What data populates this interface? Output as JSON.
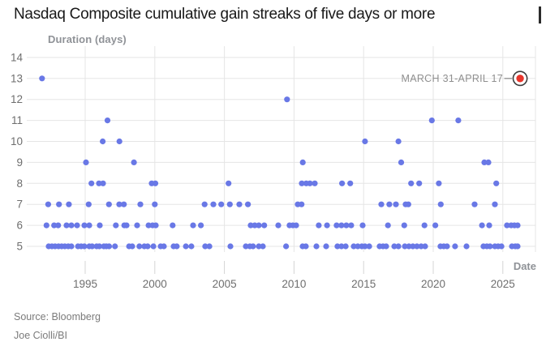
{
  "header": {
    "title": "Nasdaq Composite cumulative gain streaks of five days or more"
  },
  "footer": {
    "source": "Source: Bloomberg",
    "byline": "Joe Ciolli/BI"
  },
  "chart_data": {
    "type": "scatter",
    "title": "Nasdaq Composite cumulative gain streaks of five days or more",
    "x_axis": {
      "label": "Date",
      "ticks": [
        1995,
        2000,
        2005,
        2010,
        2015,
        2020,
        2025
      ],
      "range_years": [
        1991.3,
        2027.3
      ],
      "grid": true
    },
    "y_axis": {
      "label": "Duration (days)",
      "ticks": [
        5,
        6,
        7,
        8,
        9,
        10,
        11,
        12,
        13,
        14
      ],
      "range": [
        5,
        14
      ],
      "grid": true
    },
    "legend": "none",
    "annotation": {
      "label": "MARCH 31-APRIL 17",
      "point": {
        "year": 2026.24,
        "duration": 13
      }
    },
    "colors": {
      "dot": "#6978e6",
      "highlight": "#e8352b",
      "ring_stroke": "#3d3d3d",
      "grid": "#e5e5e5",
      "tick": "#d4d4d4",
      "axis_text": "#6e6e6e",
      "annotation_line": "#8f8f8f"
    },
    "points": [
      [
        1991.9,
        13
      ],
      [
        2009.5,
        12
      ],
      [
        1996.6,
        11
      ],
      [
        2019.9,
        11
      ],
      [
        2021.8,
        11
      ],
      [
        1996.26,
        10
      ],
      [
        1997.46,
        10
      ],
      [
        2015.1,
        10
      ],
      [
        2017.5,
        10
      ],
      [
        1995.06,
        9
      ],
      [
        1998.5,
        9
      ],
      [
        2010.63,
        9
      ],
      [
        2017.7,
        9
      ],
      [
        2023.67,
        9
      ],
      [
        2023.96,
        9
      ],
      [
        1995.45,
        8
      ],
      [
        1995.99,
        8
      ],
      [
        1996.28,
        8
      ],
      [
        1999.78,
        8
      ],
      [
        2000.04,
        8
      ],
      [
        2005.3,
        8
      ],
      [
        2010.56,
        8
      ],
      [
        2010.88,
        8
      ],
      [
        2011.14,
        8
      ],
      [
        2011.49,
        8
      ],
      [
        2013.45,
        8
      ],
      [
        2014.04,
        8
      ],
      [
        2018.41,
        8
      ],
      [
        2018.99,
        8
      ],
      [
        2020.4,
        8
      ],
      [
        2024.53,
        8
      ],
      [
        1992.34,
        7
      ],
      [
        1993.12,
        7
      ],
      [
        1993.83,
        7
      ],
      [
        1995.25,
        7
      ],
      [
        1996.71,
        7
      ],
      [
        1997.45,
        7
      ],
      [
        1997.78,
        7
      ],
      [
        1998.96,
        7
      ],
      [
        2000.0,
        7
      ],
      [
        2003.58,
        7
      ],
      [
        2004.21,
        7
      ],
      [
        2004.77,
        7
      ],
      [
        2005.39,
        7
      ],
      [
        2006.07,
        7
      ],
      [
        2006.69,
        7
      ],
      [
        2010.27,
        7
      ],
      [
        2010.54,
        7
      ],
      [
        2016.27,
        7
      ],
      [
        2016.85,
        7
      ],
      [
        2017.32,
        7
      ],
      [
        2018.02,
        7
      ],
      [
        2018.21,
        7
      ],
      [
        2020.54,
        7
      ],
      [
        2022.97,
        7
      ],
      [
        2024.43,
        7
      ],
      [
        1992.22,
        6
      ],
      [
        1992.77,
        6
      ],
      [
        1993.06,
        6
      ],
      [
        1993.66,
        6
      ],
      [
        1994.01,
        6
      ],
      [
        1994.42,
        6
      ],
      [
        1994.94,
        6
      ],
      [
        1995.29,
        6
      ],
      [
        1996.05,
        6
      ],
      [
        1997.2,
        6
      ],
      [
        1997.81,
        6
      ],
      [
        1997.97,
        6
      ],
      [
        1998.73,
        6
      ],
      [
        1999.55,
        6
      ],
      [
        1999.84,
        6
      ],
      [
        2000.07,
        6
      ],
      [
        2001.28,
        6
      ],
      [
        2002.75,
        6
      ],
      [
        2003.31,
        6
      ],
      [
        2006.89,
        6
      ],
      [
        2007.18,
        6
      ],
      [
        2007.47,
        6
      ],
      [
        2007.86,
        6
      ],
      [
        2008.87,
        6
      ],
      [
        2009.68,
        6
      ],
      [
        2009.92,
        6
      ],
      [
        2010.15,
        6
      ],
      [
        2011.78,
        6
      ],
      [
        2012.37,
        6
      ],
      [
        2013.06,
        6
      ],
      [
        2013.41,
        6
      ],
      [
        2013.76,
        6
      ],
      [
        2014.11,
        6
      ],
      [
        2014.93,
        6
      ],
      [
        2016.75,
        6
      ],
      [
        2017.92,
        6
      ],
      [
        2019.37,
        6
      ],
      [
        2020.15,
        6
      ],
      [
        2023.5,
        6
      ],
      [
        2024.02,
        6
      ],
      [
        2025.3,
        6
      ],
      [
        2025.6,
        6
      ],
      [
        2025.83,
        6
      ],
      [
        2026.06,
        6
      ],
      [
        1992.38,
        5
      ],
      [
        1992.61,
        5
      ],
      [
        1992.84,
        5
      ],
      [
        1993.08,
        5
      ],
      [
        1993.31,
        5
      ],
      [
        1993.54,
        5
      ],
      [
        1993.78,
        5
      ],
      [
        1994.01,
        5
      ],
      [
        1994.48,
        5
      ],
      [
        1994.71,
        5
      ],
      [
        1994.94,
        5
      ],
      [
        1995.29,
        5
      ],
      [
        1995.5,
        5
      ],
      [
        1995.82,
        5
      ],
      [
        1996.02,
        5
      ],
      [
        1996.34,
        5
      ],
      [
        1996.52,
        5
      ],
      [
        1996.72,
        5
      ],
      [
        1997.14,
        5
      ],
      [
        1998.15,
        5
      ],
      [
        1998.38,
        5
      ],
      [
        1998.89,
        5
      ],
      [
        1999.25,
        5
      ],
      [
        1999.49,
        5
      ],
      [
        1999.9,
        5
      ],
      [
        2000.42,
        5
      ],
      [
        2000.65,
        5
      ],
      [
        2001.35,
        5
      ],
      [
        2001.58,
        5
      ],
      [
        2002.23,
        5
      ],
      [
        2002.63,
        5
      ],
      [
        2003.62,
        5
      ],
      [
        2003.92,
        5
      ],
      [
        2005.43,
        5
      ],
      [
        2006.54,
        5
      ],
      [
        2006.83,
        5
      ],
      [
        2007.06,
        5
      ],
      [
        2007.47,
        5
      ],
      [
        2007.76,
        5
      ],
      [
        2009.43,
        5
      ],
      [
        2010.62,
        5
      ],
      [
        2010.85,
        5
      ],
      [
        2011.61,
        5
      ],
      [
        2012.31,
        5
      ],
      [
        2013.12,
        5
      ],
      [
        2013.41,
        5
      ],
      [
        2013.71,
        5
      ],
      [
        2014.29,
        5
      ],
      [
        2014.58,
        5
      ],
      [
        2014.87,
        5
      ],
      [
        2015.1,
        5
      ],
      [
        2015.4,
        5
      ],
      [
        2016.15,
        5
      ],
      [
        2016.39,
        5
      ],
      [
        2016.62,
        5
      ],
      [
        2017.2,
        5
      ],
      [
        2017.5,
        5
      ],
      [
        2017.96,
        5
      ],
      [
        2018.25,
        5
      ],
      [
        2018.54,
        5
      ],
      [
        2018.83,
        5
      ],
      [
        2019.13,
        5
      ],
      [
        2019.42,
        5
      ],
      [
        2020.52,
        5
      ],
      [
        2020.76,
        5
      ],
      [
        2020.99,
        5
      ],
      [
        2021.57,
        5
      ],
      [
        2022.39,
        5
      ],
      [
        2023.61,
        5
      ],
      [
        2023.85,
        5
      ],
      [
        2024.08,
        5
      ],
      [
        2024.43,
        5
      ],
      [
        2024.66,
        5
      ],
      [
        2024.9,
        5
      ],
      [
        2025.65,
        5
      ],
      [
        2025.89,
        5
      ],
      [
        2026.06,
        5
      ]
    ]
  }
}
